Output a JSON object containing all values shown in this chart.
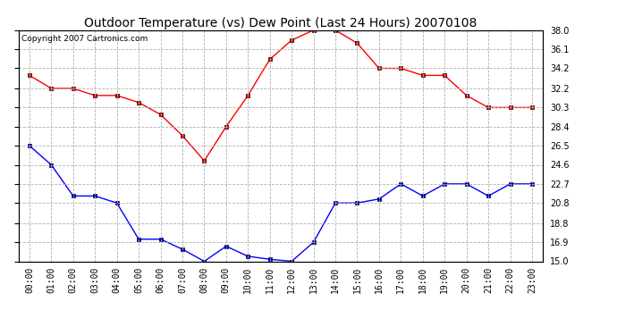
{
  "title": "Outdoor Temperature (vs) Dew Point (Last 24 Hours) 20070108",
  "copyright_text": "Copyright 2007 Cartronics.com",
  "x_labels": [
    "00:00",
    "01:00",
    "02:00",
    "03:00",
    "04:00",
    "05:00",
    "06:00",
    "07:00",
    "08:00",
    "09:00",
    "10:00",
    "11:00",
    "12:00",
    "13:00",
    "14:00",
    "15:00",
    "16:00",
    "17:00",
    "18:00",
    "19:00",
    "20:00",
    "21:00",
    "22:00",
    "23:00"
  ],
  "temp_data": [
    33.5,
    32.2,
    32.2,
    31.5,
    31.5,
    30.8,
    29.6,
    27.5,
    25.0,
    28.4,
    31.5,
    35.1,
    37.0,
    38.0,
    38.0,
    36.7,
    34.2,
    34.2,
    33.5,
    33.5,
    31.5,
    30.3,
    30.3,
    30.3
  ],
  "dew_data": [
    26.5,
    24.6,
    21.5,
    21.5,
    20.8,
    17.2,
    17.2,
    16.2,
    15.0,
    16.5,
    15.5,
    15.2,
    15.0,
    16.9,
    20.8,
    20.8,
    21.2,
    22.7,
    21.5,
    22.7,
    22.7,
    21.5,
    22.7,
    22.7
  ],
  "temp_color": "#ff0000",
  "dew_color": "#0000ff",
  "bg_color": "#ffffff",
  "grid_color": "#b0b0b0",
  "ylim": [
    15.0,
    38.0
  ],
  "yticks": [
    15.0,
    16.9,
    18.8,
    20.8,
    22.7,
    24.6,
    26.5,
    28.4,
    30.3,
    32.2,
    34.2,
    36.1,
    38.0
  ],
  "title_fontsize": 10,
  "tick_fontsize": 7,
  "copyright_fontsize": 6.5
}
